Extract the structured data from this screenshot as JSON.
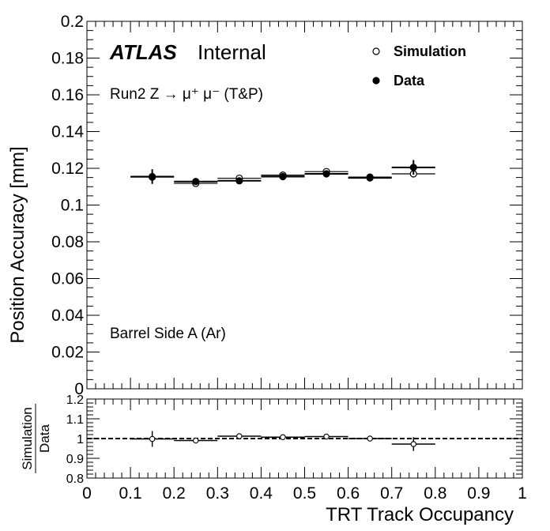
{
  "chart_data": [
    {
      "type": "scatter",
      "panel": "main",
      "title": "",
      "xlabel": "",
      "ylabel": "Position Accuracy [mm]",
      "xlim": [
        0,
        1
      ],
      "ylim": [
        0,
        0.2
      ],
      "yticks": [
        "0",
        "0.02",
        "0.04",
        "0.06",
        "0.08",
        "0.1",
        "0.12",
        "0.14",
        "0.16",
        "0.18",
        "0.2"
      ],
      "annotations": {
        "atlas": "ATLAS",
        "internal": "Internal",
        "process": "Run2 Z → μ⁺ μ⁻ (T&P)",
        "region": "Barrel Side A (Ar)"
      },
      "legend": {
        "position": "top-right",
        "entries": [
          "Simulation",
          "Data"
        ]
      },
      "series": [
        {
          "name": "Simulation",
          "marker": "open-circle",
          "x": [
            0.15,
            0.25,
            0.35,
            0.45,
            0.55,
            0.65,
            0.75
          ],
          "xerr": [
            0.05,
            0.05,
            0.05,
            0.05,
            0.05,
            0.05,
            0.05
          ],
          "y": [
            0.1152,
            0.1118,
            0.1146,
            0.1163,
            0.1182,
            0.1152,
            0.117
          ],
          "yerr": [
            0.0008,
            0.0005,
            0.0005,
            0.0005,
            0.0005,
            0.0006,
            0.0015
          ]
        },
        {
          "name": "Data",
          "marker": "filled-circle",
          "x": [
            0.15,
            0.25,
            0.35,
            0.45,
            0.55,
            0.65,
            0.75
          ],
          "xerr": [
            0.05,
            0.05,
            0.05,
            0.05,
            0.05,
            0.05,
            0.05
          ],
          "y": [
            0.1155,
            0.1128,
            0.1132,
            0.1155,
            0.117,
            0.1148,
            0.1205
          ],
          "yerr": [
            0.004,
            0.0012,
            0.001,
            0.001,
            0.0012,
            0.0012,
            0.004
          ]
        }
      ]
    },
    {
      "type": "scatter",
      "panel": "ratio",
      "xlabel": "TRT Track Occupancy",
      "ylabel": "Simulation / Data",
      "ylabel_num": "Simulation",
      "ylabel_den": "Data",
      "xlim": [
        0,
        1
      ],
      "ylim": [
        0.8,
        1.2
      ],
      "xticks": [
        "0",
        "0.1",
        "0.2",
        "0.3",
        "0.4",
        "0.5",
        "0.6",
        "0.7",
        "0.8",
        "0.9",
        "1"
      ],
      "yticks": [
        "0.8",
        "0.9",
        "1",
        "1.1",
        "1.2"
      ],
      "reference_line": 1,
      "series": [
        {
          "name": "Simulation/Data",
          "x": [
            0.15,
            0.25,
            0.35,
            0.45,
            0.55,
            0.65,
            0.75
          ],
          "xerr": [
            0.05,
            0.05,
            0.05,
            0.05,
            0.05,
            0.05,
            0.05
          ],
          "y": [
            0.998,
            0.99,
            1.012,
            1.007,
            1.01,
            1.0,
            0.972
          ],
          "yerr": [
            0.04,
            0.01,
            0.008,
            0.008,
            0.01,
            0.01,
            0.035
          ]
        }
      ]
    }
  ]
}
